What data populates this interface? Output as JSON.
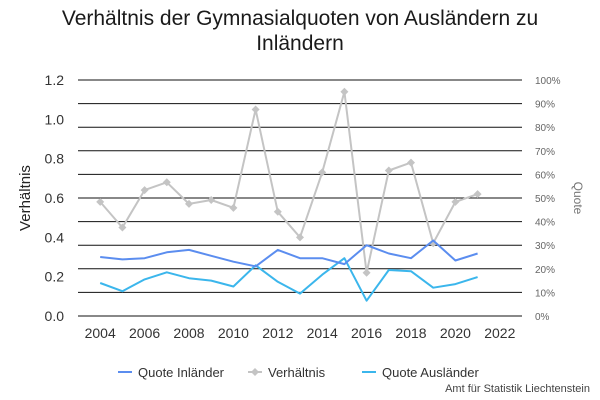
{
  "chart_data": {
    "type": "line",
    "title": "Verhältnis der Gymnasialquoten von Ausländern zu Inländern",
    "ylabel_left": "Verhältnis",
    "ylabel_right": "Quote",
    "x": [
      2004,
      2005,
      2006,
      2007,
      2008,
      2009,
      2010,
      2011,
      2012,
      2013,
      2014,
      2015,
      2016,
      2017,
      2018,
      2019,
      2020,
      2021
    ],
    "xlim": [
      2003,
      2023
    ],
    "xticks": [
      "2004",
      "2006",
      "2008",
      "2010",
      "2012",
      "2014",
      "2016",
      "2018",
      "2020",
      "2022"
    ],
    "ylim_left": [
      0,
      1.2
    ],
    "yticks_left": [
      "0.0",
      "0.2",
      "0.4",
      "0.6",
      "0.8",
      "1.0",
      "1.2"
    ],
    "ylim_right": [
      0,
      1.0
    ],
    "yticks_right": [
      "0%",
      "10%",
      "20%",
      "30%",
      "40%",
      "50%",
      "60%",
      "70%",
      "80%",
      "90%",
      "100%"
    ],
    "grid": "horizontal",
    "legend_position": "bottom",
    "series": [
      {
        "name": "Quote Inländer",
        "axis": "right",
        "color": "#5b8def",
        "marker": "none",
        "values": [
          0.25,
          0.24,
          0.245,
          0.27,
          0.28,
          0.255,
          0.23,
          0.21,
          0.28,
          0.245,
          0.245,
          0.22,
          0.3,
          0.265,
          0.245,
          0.32,
          0.235,
          0.265
        ]
      },
      {
        "name": "Verhältnis",
        "axis": "left",
        "color": "#c4c4c4",
        "marker": "diamond",
        "values": [
          0.58,
          0.45,
          0.64,
          0.68,
          0.57,
          0.59,
          0.55,
          1.05,
          0.53,
          0.4,
          0.73,
          1.14,
          0.22,
          0.74,
          0.78,
          0.37,
          0.58,
          0.62
        ]
      },
      {
        "name": "Quote Ausländer",
        "axis": "right",
        "color": "#3bb6ec",
        "marker": "none",
        "values": [
          0.14,
          0.105,
          0.155,
          0.185,
          0.16,
          0.15,
          0.125,
          0.215,
          0.145,
          0.095,
          0.175,
          0.245,
          0.065,
          0.195,
          0.19,
          0.12,
          0.135,
          0.165
        ]
      }
    ]
  },
  "source_note": "Amt für Statistik Liechtenstein"
}
